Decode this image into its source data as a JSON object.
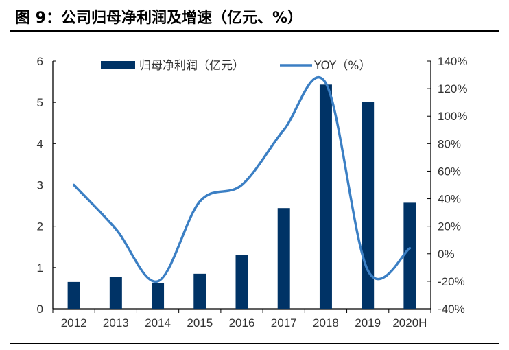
{
  "title": "图 9：公司归母净利润及增速（亿元、%）",
  "chart_data": {
    "type": "bar+line",
    "title": "图 9：公司归母净利润及增速（亿元、%）",
    "categories": [
      "2012",
      "2013",
      "2014",
      "2015",
      "2016",
      "2017",
      "2018",
      "2019",
      "2020H"
    ],
    "series": [
      {
        "name": "归母净利润（亿元）",
        "type": "bar",
        "axis": "left",
        "color": "#003366",
        "values": [
          0.65,
          0.78,
          0.63,
          0.85,
          1.3,
          2.44,
          5.43,
          5.01,
          2.57
        ]
      },
      {
        "name": "YOY（%）",
        "type": "line",
        "axis": "right",
        "color": "#3b7fc4",
        "values": [
          50,
          18,
          -20,
          38,
          50,
          90,
          124,
          -12,
          4
        ]
      }
    ],
    "left_axis": {
      "ylim": [
        0,
        6
      ],
      "ticks": [
        "0",
        "1",
        "2",
        "3",
        "4",
        "5",
        "6"
      ]
    },
    "right_axis": {
      "ylim": [
        -40,
        140
      ],
      "ticks": [
        "-40%",
        "-20%",
        "0%",
        "20%",
        "40%",
        "60%",
        "80%",
        "100%",
        "120%",
        "140%"
      ]
    },
    "legend": "top",
    "grid": false
  }
}
